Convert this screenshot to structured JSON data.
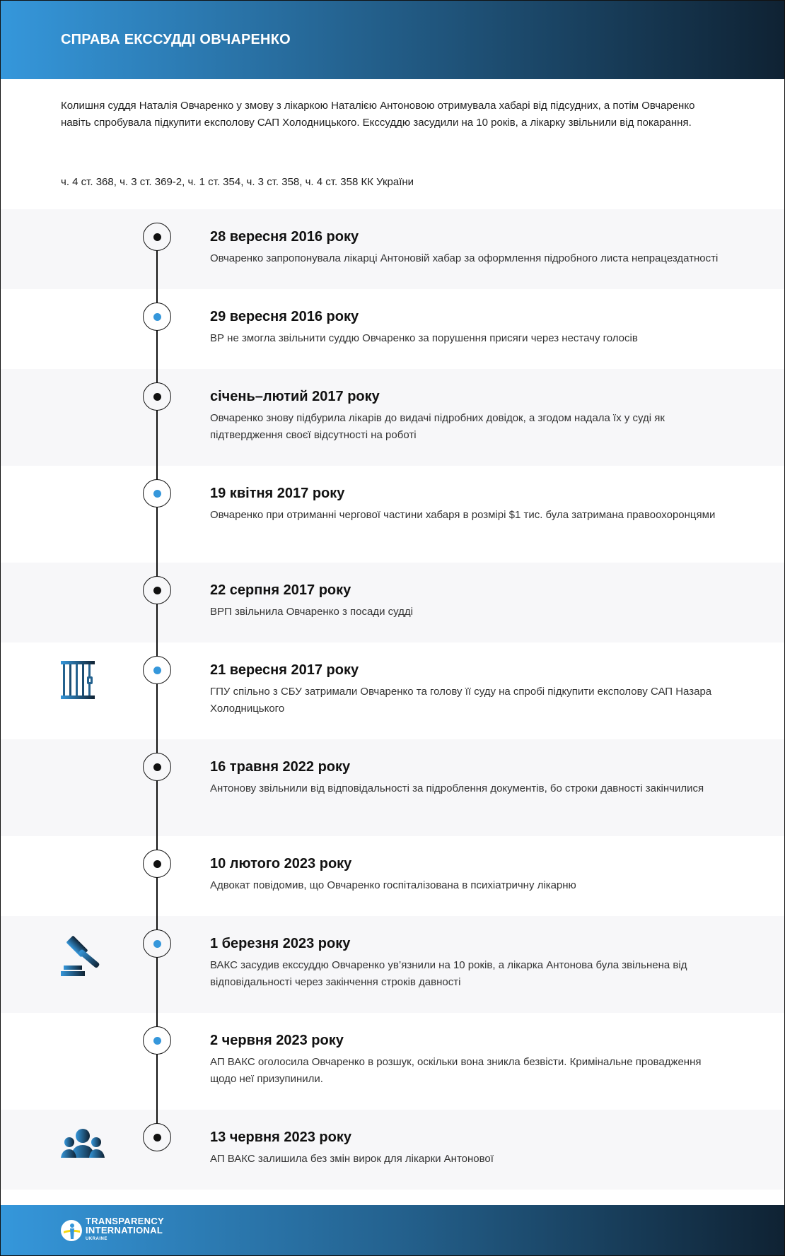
{
  "header": {
    "title": "СПРАВА ЕКССУДДІ ОВЧАРЕНКО"
  },
  "intro": "Колишня суддя Наталія Овчаренко у змову з лікаркою Наталією Антоновою отримувала хабарі від підсудних, а потім Овчаренко навіть спробувала підкупити експолову САП Холодницького. Екссуддю засудили на 10 років, а лікарку звільнили від покарання.",
  "articles": "ч. 4 ст. 368, ч. 3 ст. 369-2, ч. 1 ст. 354, ч. 3 ст. 358, ч. 4 ст. 358 КК України",
  "colors": {
    "accent": "#3597db",
    "dark": "#0f2233",
    "row_gray": "#f7f7f9"
  },
  "events": [
    {
      "date": "28 вересня 2016 року",
      "text": "Овчаренко запропонувала лікарці Антоновій хабар за оформлення підробного листа непрацездатності",
      "dot": "#111111"
    },
    {
      "date": "29 вересня 2016 року",
      "text": "ВР не змогла звільнити суддю Овчаренко за порушення присяги через нестачу голосів",
      "dot": "#3597db"
    },
    {
      "date": "січень–лютий 2017 року",
      "text": "Овчаренко знову підбурила лікарів до видачі підробних довідок, а згодом надала їх у суді як підтвердження своєї відсутності на роботі",
      "dot": "#111111"
    },
    {
      "date": "19 квітня 2017 року",
      "text": "Овчаренко при отриманні чергової частини хабаря в розмірі $1 тис. була затримана правоохоронцями",
      "dot": "#3597db"
    },
    {
      "date": "22 серпня 2017 року",
      "text": "ВРП звільнила Овчаренко з посади судді",
      "dot": "#111111"
    },
    {
      "date": "21 вересня 2017 року",
      "text": "ГПУ спільно з СБУ затримали Овчаренко та голову її суду на спробі підкупити експолову САП Назара Холодницького",
      "dot": "#3597db",
      "icon": "prison-bars-icon"
    },
    {
      "date": "16 травня 2022 року",
      "text": "Антонову звільнили від відповідальності за підроблення документів, бо строки давності закінчилися",
      "dot": "#111111"
    },
    {
      "date": "10 лютого 2023 року",
      "text": "Адвокат повідомив, що Овчаренко госпіталізована в психіатричну лікарню",
      "dot": "#111111"
    },
    {
      "date": "1 березня 2023 року",
      "text": "ВАКС засудив екссуддю Овчаренко ув’язнили на 10 років, а лікарка Антонова була звільнена від відповідальності через закінчення строків давності",
      "dot": "#3597db",
      "icon": "gavel-icon"
    },
    {
      "date": "2 червня 2023 року",
      "text": "АП ВАКС оголосила Овчаренко в розшук, оскільки вона зникла безвісти. Кримінальне провадження щодо неї призупинили.",
      "dot": "#3597db"
    },
    {
      "date": "13 червня 2023 року",
      "text": "АП ВАКС залишила без змін вирок для лікарки Антонової",
      "dot": "#111111",
      "icon": "people-group-icon"
    }
  ],
  "footer": {
    "logo_line1": "TRANSPARENCY",
    "logo_line2": "INTERNATIONAL",
    "logo_line3": "UKRAINE"
  }
}
